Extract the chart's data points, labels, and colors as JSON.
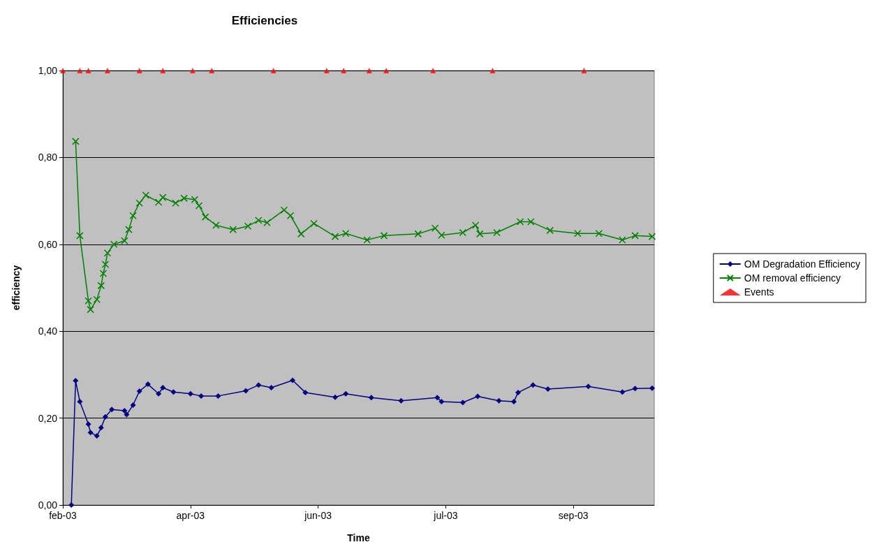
{
  "chart_data": {
    "type": "line",
    "title": "Efficiencies",
    "xlabel": "Time",
    "ylabel": "efficiency",
    "xlim": [
      "2003-02-01",
      "2003-11-06"
    ],
    "xticks": [
      {
        "value": "2003-02-01",
        "label": "feb-03"
      },
      {
        "value": "2003-04-02",
        "label": "apr-03"
      },
      {
        "value": "2003-06-01",
        "label": "jun-03"
      },
      {
        "value": "2003-07-31",
        "label": "jul-03"
      },
      {
        "value": "2003-09-29",
        "label": "sep-03"
      }
    ],
    "ylim": [
      0,
      1
    ],
    "yticks": [
      {
        "value": 0,
        "label": "0,00"
      },
      {
        "value": 0.2,
        "label": "0,20"
      },
      {
        "value": 0.4,
        "label": "0,40"
      },
      {
        "value": 0.6,
        "label": "0,60"
      },
      {
        "value": 0.8,
        "label": "0,80"
      },
      {
        "value": 1,
        "label": "1,00"
      }
    ],
    "grid": "y",
    "legend": "right",
    "series": [
      {
        "name": "OM Degradation Efficiency",
        "color": "#000080",
        "marker": "diamond",
        "x": [
          "2003-02-05",
          "2003-02-07",
          "2003-02-09",
          "2003-02-13",
          "2003-02-14",
          "2003-02-17",
          "2003-02-19",
          "2003-02-21",
          "2003-02-24",
          "2003-03-02",
          "2003-03-03",
          "2003-03-06",
          "2003-03-09",
          "2003-03-13",
          "2003-03-18",
          "2003-03-20",
          "2003-03-25",
          "2003-04-02",
          "2003-04-07",
          "2003-04-15",
          "2003-04-28",
          "2003-05-04",
          "2003-05-10",
          "2003-05-20",
          "2003-05-26",
          "2003-06-09",
          "2003-06-14",
          "2003-06-26",
          "2003-07-10",
          "2003-07-27",
          "2003-07-29",
          "2003-08-08",
          "2003-08-15",
          "2003-08-25",
          "2003-09-01",
          "2003-09-03",
          "2003-09-10",
          "2003-09-17",
          "2003-10-06",
          "2003-10-22",
          "2003-10-28",
          "2003-11-05"
        ],
        "values": [
          0,
          0.286,
          0.238,
          0.186,
          0.167,
          0.159,
          0.178,
          0.203,
          0.22,
          0.217,
          0.208,
          0.23,
          0.262,
          0.278,
          0.256,
          0.27,
          0.26,
          0.256,
          0.251,
          0.251,
          0.263,
          0.276,
          0.27,
          0.287,
          0.259,
          0.248,
          0.256,
          0.247,
          0.24,
          0.247,
          0.238,
          0.236,
          0.25,
          0.24,
          0.238,
          0.259,
          0.276,
          0.267,
          0.273,
          0.26,
          0.268,
          0.269
        ]
      },
      {
        "name": "OM removal efficiency",
        "color": "#008000",
        "marker": "cross",
        "x": [
          "2003-02-07",
          "2003-02-09",
          "2003-02-13",
          "2003-02-14",
          "2003-02-17",
          "2003-02-19",
          "2003-02-20",
          "2003-02-21",
          "2003-02-22",
          "2003-02-25",
          "2003-03-02",
          "2003-03-04",
          "2003-03-06",
          "2003-03-09",
          "2003-03-12",
          "2003-03-18",
          "2003-03-20",
          "2003-03-26",
          "2003-03-30",
          "2003-04-04",
          "2003-04-06",
          "2003-04-09",
          "2003-04-14",
          "2003-04-22",
          "2003-04-29",
          "2003-05-04",
          "2003-05-08",
          "2003-05-16",
          "2003-05-19",
          "2003-05-24",
          "2003-05-30",
          "2003-06-09",
          "2003-06-14",
          "2003-06-24",
          "2003-07-02",
          "2003-07-18",
          "2003-07-26",
          "2003-07-29",
          "2003-08-08",
          "2003-08-14",
          "2003-08-16",
          "2003-08-24",
          "2003-09-04",
          "2003-09-09",
          "2003-09-18",
          "2003-10-01",
          "2003-10-11",
          "2003-10-22",
          "2003-10-28",
          "2003-11-05"
        ],
        "values": [
          0.837,
          0.62,
          0.47,
          0.45,
          0.473,
          0.505,
          0.533,
          0.554,
          0.58,
          0.6,
          0.608,
          0.634,
          0.666,
          0.695,
          0.713,
          0.697,
          0.708,
          0.695,
          0.706,
          0.703,
          0.689,
          0.663,
          0.644,
          0.634,
          0.642,
          0.655,
          0.65,
          0.679,
          0.666,
          0.624,
          0.648,
          0.618,
          0.625,
          0.61,
          0.62,
          0.624,
          0.637,
          0.621,
          0.627,
          0.644,
          0.624,
          0.627,
          0.652,
          0.652,
          0.632,
          0.625,
          0.625,
          0.61,
          0.62,
          0.618
        ]
      },
      {
        "name": "Events",
        "type": "scatter",
        "color": "#ff0000",
        "marker": "triangle",
        "x": [
          "2003-02-01",
          "2003-02-09",
          "2003-02-13",
          "2003-02-22",
          "2003-03-09",
          "2003-03-20",
          "2003-04-03",
          "2003-04-12",
          "2003-05-11",
          "2003-06-05",
          "2003-06-13",
          "2003-06-25",
          "2003-07-03",
          "2003-07-25",
          "2003-08-22",
          "2003-10-04"
        ],
        "values": [
          1,
          1,
          1,
          1,
          1,
          1,
          1,
          1,
          1,
          1,
          1,
          1,
          1,
          1,
          1,
          1
        ]
      }
    ]
  }
}
